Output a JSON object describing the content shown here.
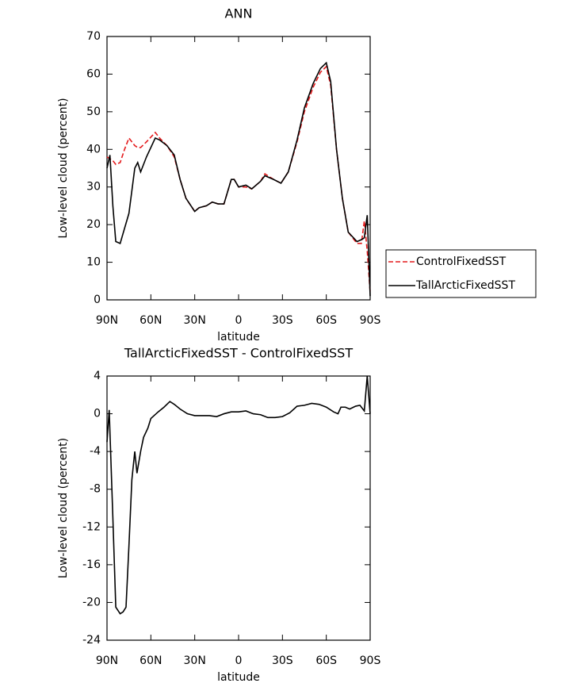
{
  "chart_data": [
    {
      "type": "line",
      "title": "ANN",
      "x_label": "latitude",
      "y_label": "Low-level cloud (percent)",
      "x": [
        90,
        88,
        86,
        84,
        81,
        78,
        75,
        71,
        69,
        67,
        63,
        57,
        54,
        49,
        44,
        40,
        36,
        30,
        27,
        22,
        18,
        14,
        10,
        5,
        3,
        0,
        -5,
        -9,
        -15,
        -18,
        -24,
        -29,
        -34,
        -40,
        -45,
        -51,
        -56,
        -60,
        -63,
        -67,
        -71,
        -75,
        -81,
        -84,
        -86,
        -88,
        -90
      ],
      "series": [
        {
          "name": "ControlFixedSST",
          "color": "#e41a1c",
          "line_style": "dashed",
          "values": [
            38,
            37.5,
            37,
            36,
            36.5,
            40,
            43,
            41,
            40.5,
            40.5,
            42,
            44.5,
            43,
            41,
            38,
            32,
            27,
            23.5,
            24.5,
            25,
            26,
            25.5,
            25.5,
            32,
            32,
            30,
            30,
            29.5,
            31.5,
            33.5,
            32,
            31,
            34,
            42,
            50,
            56.5,
            60.5,
            62,
            57,
            40,
            27,
            18,
            15,
            15,
            21,
            13,
            2
          ]
        },
        {
          "name": "TallArcticFixedSST",
          "color": "#000000",
          "line_style": "solid",
          "values": [
            35,
            38.5,
            25,
            15.5,
            15,
            19,
            23,
            35,
            36.5,
            34,
            38,
            43,
            42.5,
            41,
            38.5,
            32,
            27,
            23.5,
            24.5,
            25,
            26,
            25.5,
            25.5,
            32,
            32,
            30,
            30.5,
            29.5,
            31.5,
            33,
            32,
            31,
            34,
            42.5,
            51,
            57.5,
            61.5,
            63,
            58,
            40,
            27,
            18,
            15.5,
            16,
            16.5,
            22.5,
            1
          ]
        }
      ],
      "xlim": [
        90,
        -90
      ],
      "xticks": [
        {
          "value": 90,
          "label": "90N"
        },
        {
          "value": 60,
          "label": "60N"
        },
        {
          "value": 30,
          "label": "30N"
        },
        0,
        {
          "value": -30,
          "label": "30S"
        },
        {
          "value": -60,
          "label": "60S"
        },
        {
          "value": -90,
          "label": "90S"
        }
      ],
      "ylim": [
        0,
        70
      ],
      "yticks": [
        0,
        10,
        20,
        30,
        40,
        50,
        60,
        70
      ],
      "legend": "right"
    },
    {
      "type": "line",
      "title": "TallArcticFixedSST - ControlFixedSST",
      "x_label": "latitude",
      "y_label": "Low-level cloud (percent)",
      "x": [
        90,
        88.5,
        86,
        84,
        81,
        79,
        77,
        75,
        73,
        71,
        69.5,
        67,
        65,
        62,
        60,
        55,
        51,
        47,
        44,
        40,
        35,
        30,
        25,
        20,
        15,
        10,
        5,
        0,
        -5,
        -10,
        -15,
        -20,
        -25,
        -30,
        -35,
        -40,
        -45,
        -50,
        -55,
        -60,
        -65,
        -68,
        -70,
        -73,
        -76,
        -80,
        -83,
        -86,
        -88,
        -90
      ],
      "values": [
        -3,
        0.4,
        -11,
        -20.5,
        -21.2,
        -21,
        -20.5,
        -14,
        -7,
        -4,
        -6.3,
        -4,
        -2.5,
        -1.5,
        -0.5,
        0.2,
        0.7,
        1.3,
        1.0,
        0.5,
        0,
        -0.2,
        -0.2,
        -0.2,
        -0.3,
        0,
        0.2,
        0.2,
        0.3,
        0,
        -0.1,
        -0.4,
        -0.4,
        -0.3,
        0.1,
        0.8,
        0.9,
        1.1,
        1.0,
        0.7,
        0.2,
        0,
        0.7,
        0.7,
        0.5,
        0.8,
        0.9,
        0.3,
        4.0,
        0
      ],
      "color": "#000000",
      "xlim": [
        90,
        -90
      ],
      "xticks": [
        {
          "value": 90,
          "label": "90N"
        },
        {
          "value": 60,
          "label": "60N"
        },
        {
          "value": 30,
          "label": "30N"
        },
        0,
        {
          "value": -30,
          "label": "30S"
        },
        {
          "value": -60,
          "label": "60S"
        },
        {
          "value": -90,
          "label": "90S"
        }
      ],
      "ylim": [
        -24,
        4
      ],
      "yticks": [
        -24,
        -20,
        -16,
        -12,
        -8,
        -4,
        0,
        4
      ]
    }
  ]
}
